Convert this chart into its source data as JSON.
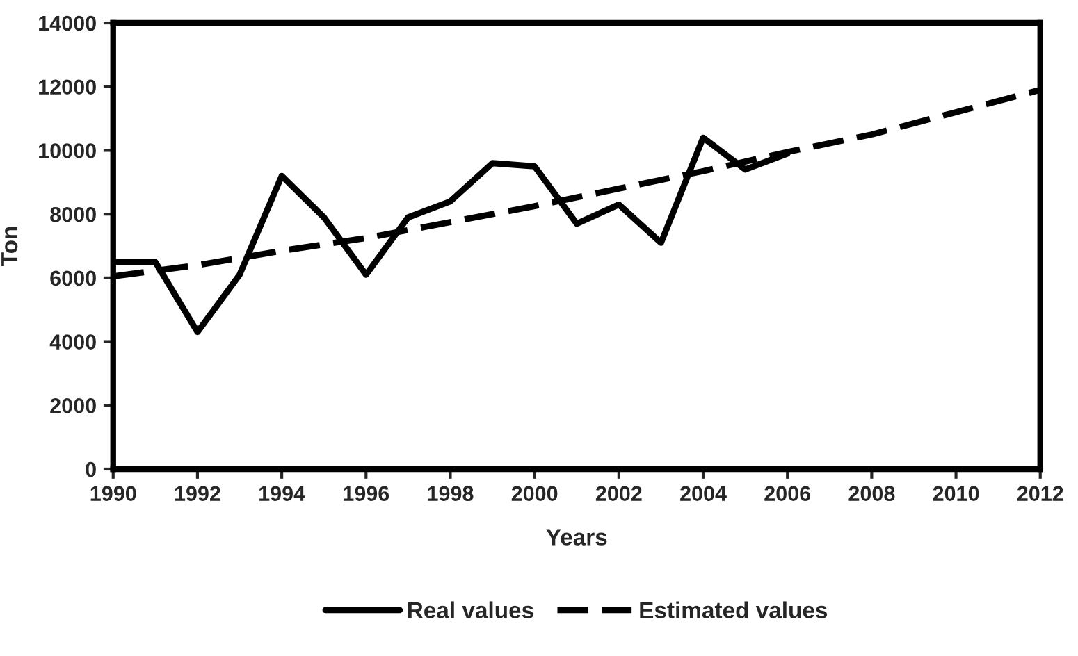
{
  "chart_data": {
    "type": "line",
    "xlabel": "Years",
    "ylabel": "Ton",
    "xlim": [
      1990,
      2012
    ],
    "xticks": [
      1990,
      1992,
      1994,
      1996,
      1998,
      2000,
      2002,
      2004,
      2006,
      2008,
      2010,
      2012
    ],
    "ylim": [
      0,
      14000
    ],
    "yticks": [
      0,
      2000,
      4000,
      6000,
      8000,
      10000,
      12000,
      14000
    ],
    "grid": false,
    "legend": "bottom",
    "marker": "none",
    "series": [
      {
        "name": "Real values",
        "color": "#000000",
        "line_style": "solid",
        "x": [
          1990,
          1991,
          1992,
          1993,
          1994,
          1995,
          1996,
          1997,
          1998,
          1999,
          2000,
          2001,
          2002,
          2003,
          2004,
          2005,
          2006
        ],
        "values": [
          6500,
          6500,
          4300,
          6100,
          9200,
          7900,
          6100,
          7900,
          8400,
          9600,
          9500,
          7700,
          8300,
          7100,
          10400,
          9400,
          9900
        ]
      },
      {
        "name": "Estimated values",
        "color": "#000000",
        "line_style": "dashed",
        "x": [
          1990,
          1992,
          1994,
          1996,
          1998,
          2000,
          2002,
          2004,
          2006,
          2008,
          2010,
          2012
        ],
        "values": [
          6050,
          6400,
          6850,
          7250,
          7750,
          8250,
          8800,
          9350,
          9950,
          10500,
          11200,
          11900
        ]
      }
    ]
  }
}
